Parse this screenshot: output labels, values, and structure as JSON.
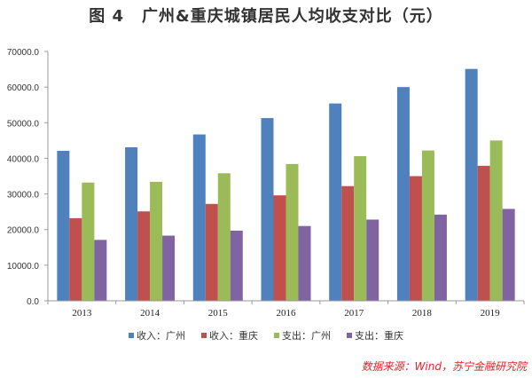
{
  "title": {
    "figure_label": "图 4",
    "text": "广州&重庆城镇居民人均收支对比（元）"
  },
  "source": "数据来源：Wind，苏宁金融研究院",
  "chart_data": {
    "type": "bar",
    "title": "广州&重庆城镇居民人均收支对比（元）",
    "xlabel": "",
    "ylabel": "",
    "categories": [
      "2013",
      "2014",
      "2015",
      "2016",
      "2017",
      "2018",
      "2019"
    ],
    "ylim": [
      0,
      70000
    ],
    "yticks": [
      "0.0",
      "10000.0",
      "20000.0",
      "30000.0",
      "40000.0",
      "50000.0",
      "60000.0",
      "70000.0"
    ],
    "ytick_values": [
      0,
      10000,
      20000,
      30000,
      40000,
      50000,
      60000,
      70000
    ],
    "grid": false,
    "legend_position": "bottom",
    "series": [
      {
        "name": "收入：广州",
        "color": "#4f81bd",
        "values": [
          42100,
          43100,
          46700,
          51300,
          55400,
          60000,
          65100
        ]
      },
      {
        "name": "收入：重庆",
        "color": "#c0504d",
        "values": [
          23200,
          25100,
          27200,
          29600,
          32200,
          35000,
          37900
        ]
      },
      {
        "name": "支出：广州",
        "color": "#9bbb59",
        "values": [
          33200,
          33400,
          35800,
          38400,
          40600,
          42200,
          45000
        ]
      },
      {
        "name": "支出：重庆",
        "color": "#8064a2",
        "values": [
          17100,
          18300,
          19700,
          21000,
          22800,
          24200,
          25800
        ]
      }
    ]
  }
}
